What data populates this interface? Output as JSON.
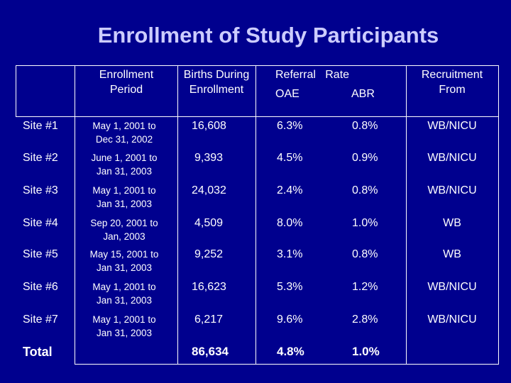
{
  "title": "Enrollment of Study Participants",
  "headers": {
    "period": "Enrollment Period",
    "births": "Births During Enrollment",
    "referral": "Referral   Rate",
    "oae": "OAE",
    "abr": "ABR",
    "recruitment": "Recruitment From"
  },
  "rows": [
    {
      "site": "Site #1",
      "period_line1": "May 1, 2001 to",
      "period_line2": "Dec 31, 2002",
      "births": "16,608",
      "oae": "6.3%",
      "abr": "0.8%",
      "recruit": "WB/NICU"
    },
    {
      "site": "Site #2",
      "period_line1": "June 1, 2001 to",
      "period_line2": "Jan 31, 2003",
      "births": "9,393",
      "oae": "4.5%",
      "abr": "0.9%",
      "recruit": "WB/NICU"
    },
    {
      "site": "Site #3",
      "period_line1": "May 1, 2001 to",
      "period_line2": "Jan 31, 2003",
      "births": "24,032",
      "oae": "2.4%",
      "abr": "0.8%",
      "recruit": "WB/NICU"
    },
    {
      "site": "Site #4",
      "period_line1": "Sep 20, 2001 to",
      "period_line2": "Jan, 2003",
      "births": "4,509",
      "oae": "8.0%",
      "abr": "1.0%",
      "recruit": "WB"
    },
    {
      "site": "Site #5",
      "period_line1": "May 15, 2001 to",
      "period_line2": "Jan 31, 2003",
      "births": "9,252",
      "oae": "3.1%",
      "abr": "0.8%",
      "recruit": "WB"
    },
    {
      "site": "Site #6",
      "period_line1": "May 1, 2001 to",
      "period_line2": "Jan 31, 2003",
      "births": "16,623",
      "oae": "5.3%",
      "abr": "1.2%",
      "recruit": "WB/NICU"
    },
    {
      "site": "Site #7",
      "period_line1": "May 1, 2001 to",
      "period_line2": "Jan 31, 2003",
      "births": "6,217",
      "oae": "9.6%",
      "abr": "2.8%",
      "recruit": "WB/NICU"
    }
  ],
  "total": {
    "label": "Total",
    "births": "86,634",
    "oae": "4.8%",
    "abr": "1.0%"
  }
}
